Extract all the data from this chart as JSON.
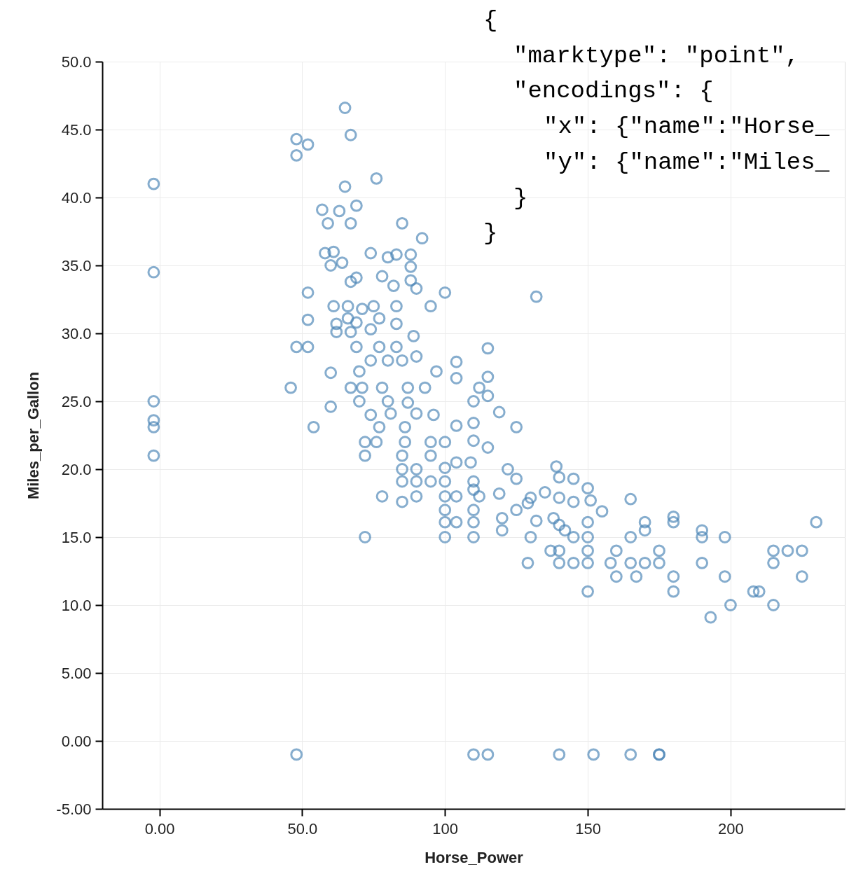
{
  "chart_data": {
    "type": "scatter",
    "xlabel": "Horse_Power",
    "ylabel": "Miles_per_Gallon",
    "xlim": [
      -20,
      240
    ],
    "ylim": [
      -5,
      50
    ],
    "xticks": [
      {
        "value": 0,
        "label": "0.00"
      },
      {
        "value": 50,
        "label": "50.0"
      },
      100,
      150,
      200
    ],
    "yticks": [
      {
        "value": -5,
        "label": "-5.00"
      },
      {
        "value": 0,
        "label": "0.00"
      },
      {
        "value": 5,
        "label": "5.00"
      },
      {
        "value": 10,
        "label": "10.0"
      },
      {
        "value": 15,
        "label": "15.0"
      },
      {
        "value": 20,
        "label": "20.0"
      },
      {
        "value": 25,
        "label": "25.0"
      },
      {
        "value": 30,
        "label": "30.0"
      },
      {
        "value": 35,
        "label": "35.0"
      },
      {
        "value": 40,
        "label": "40.0"
      },
      {
        "value": 45,
        "label": "45.0"
      },
      {
        "value": 50,
        "label": "50.0"
      }
    ],
    "grid": true,
    "marker": "circle",
    "annotations": [
      "{",
      "  \"marktype\": \"point\",",
      "  \"encodings\": {",
      "    \"x\": {\"name\":\"Horse_",
      "    \"y\": {\"name\":\"Miles_",
      "  }",
      "}"
    ],
    "series": [
      {
        "color": "#4682b4",
        "x": [
          -2,
          -2,
          -2,
          -2,
          -2,
          -2,
          48,
          110,
          115,
          140,
          152,
          165,
          175,
          175,
          65,
          67,
          48,
          48,
          52,
          76,
          65,
          57,
          63,
          69,
          59,
          67,
          85,
          92,
          61,
          58,
          74,
          80,
          83,
          88,
          60,
          88,
          78,
          88,
          90,
          64,
          69,
          67,
          52,
          82,
          100,
          132,
          61,
          66,
          71,
          75,
          83,
          95,
          52,
          62,
          66,
          69,
          77,
          83,
          62,
          67,
          74,
          89,
          48,
          52,
          69,
          77,
          83,
          74,
          80,
          85,
          90,
          104,
          115,
          60,
          70,
          97,
          104,
          115,
          46,
          67,
          71,
          78,
          87,
          93,
          112,
          115,
          60,
          70,
          80,
          87,
          110,
          74,
          81,
          90,
          96,
          119,
          54,
          77,
          86,
          104,
          110,
          125,
          72,
          76,
          86,
          95,
          100,
          110,
          115,
          72,
          85,
          95,
          104,
          109,
          85,
          90,
          100,
          122,
          139,
          85,
          90,
          95,
          100,
          110,
          125,
          140,
          145,
          110,
          150,
          78,
          90,
          100,
          104,
          112,
          119,
          130,
          135,
          140,
          165,
          85,
          129,
          145,
          151,
          100,
          110,
          125,
          155,
          120,
          132,
          138,
          180,
          100,
          104,
          110,
          140,
          150,
          170,
          230,
          180,
          120,
          190,
          170,
          142,
          100,
          110,
          72,
          130,
          145,
          150,
          165,
          190,
          198,
          137,
          140,
          150,
          160,
          175,
          215,
          220,
          225,
          129,
          140,
          145,
          150,
          158,
          165,
          170,
          175,
          190,
          215,
          160,
          167,
          180,
          198,
          225,
          150,
          180,
          208,
          210,
          200,
          215,
          193
        ],
        "values": [
          41.0,
          34.5,
          25.0,
          23.6,
          23.1,
          21.0,
          -1,
          -1,
          -1,
          -1,
          -1,
          -1,
          -1,
          -1,
          46.6,
          44.6,
          44.3,
          43.1,
          43.9,
          41.4,
          40.8,
          39.1,
          39.0,
          39.4,
          38.1,
          38.1,
          38.1,
          37.0,
          36.0,
          35.9,
          35.9,
          35.6,
          35.8,
          35.8,
          35.0,
          34.9,
          34.2,
          33.9,
          33.3,
          35.2,
          34.1,
          33.8,
          33.0,
          33.5,
          33.0,
          32.7,
          32.0,
          32.0,
          31.8,
          32.0,
          32.0,
          32.0,
          31.0,
          30.7,
          31.1,
          30.8,
          31.1,
          30.7,
          30.1,
          30.1,
          30.3,
          29.8,
          29.0,
          29.0,
          29.0,
          29.0,
          29.0,
          28.0,
          28.0,
          28.0,
          28.3,
          27.9,
          28.9,
          27.1,
          27.2,
          27.2,
          26.7,
          26.8,
          26.0,
          26.0,
          26.0,
          26.0,
          26.0,
          26.0,
          26.0,
          25.4,
          24.6,
          25.0,
          25.0,
          24.9,
          25.0,
          24.0,
          24.1,
          24.1,
          24.0,
          24.2,
          23.1,
          23.1,
          23.1,
          23.2,
          23.4,
          23.1,
          22.0,
          22.0,
          22.0,
          22.0,
          22.0,
          22.1,
          21.6,
          21.0,
          21.0,
          21.0,
          20.5,
          20.5,
          20.0,
          20.0,
          20.1,
          20.0,
          20.2,
          19.1,
          19.1,
          19.1,
          19.1,
          19.1,
          19.3,
          19.4,
          19.3,
          18.5,
          18.6,
          18.0,
          18.0,
          18.0,
          18.0,
          18.0,
          18.2,
          17.9,
          18.3,
          17.9,
          17.8,
          17.6,
          17.5,
          17.6,
          17.7,
          17.0,
          17.0,
          17.0,
          16.9,
          16.4,
          16.2,
          16.4,
          16.5,
          16.1,
          16.1,
          16.1,
          15.9,
          16.1,
          16.1,
          16.1,
          16.1,
          15.5,
          15.5,
          15.5,
          15.5,
          15.0,
          15.0,
          15.0,
          15.0,
          15.0,
          15.0,
          15.0,
          15.0,
          15.0,
          14.0,
          14.0,
          14.0,
          14.0,
          14.0,
          14.0,
          14.0,
          14.0,
          13.1,
          13.1,
          13.1,
          13.1,
          13.1,
          13.1,
          13.1,
          13.1,
          13.1,
          13.1,
          12.1,
          12.1,
          12.1,
          12.1,
          12.1,
          11.0,
          11.0,
          11.0,
          11.0,
          10.0,
          10.0,
          9.1
        ]
      }
    ]
  }
}
